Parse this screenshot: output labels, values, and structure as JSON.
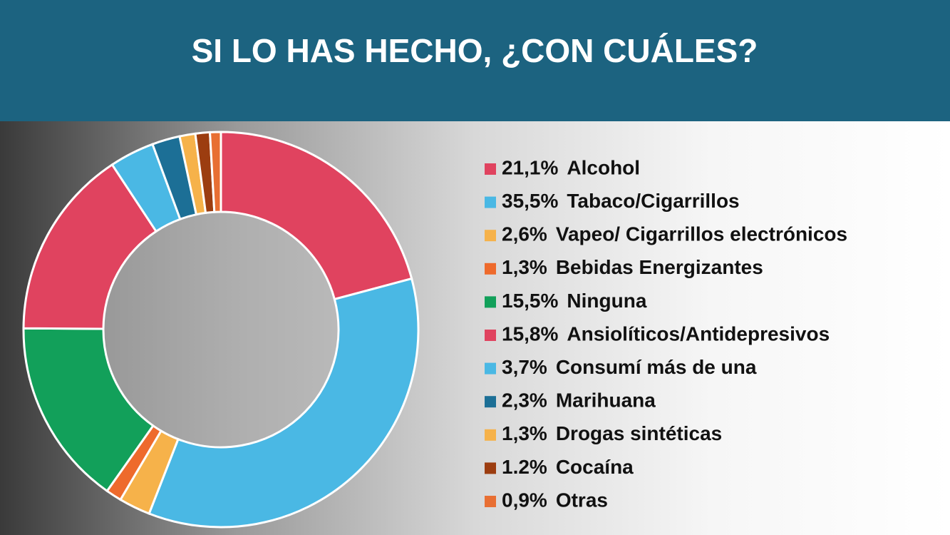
{
  "chart_data": {
    "type": "donut",
    "title": "SI LO HAS HECHO, ¿CON CUÁLES?",
    "categories": [
      "Alcohol",
      "Tabaco/Cigarrillos",
      "Vapeo/ Cigarrillos electrónicos",
      "Bebidas Energizantes",
      "Ninguna",
      "Ansiolíticos/Antidepresivos",
      "Consumí más de una",
      "Marihuana",
      "Drogas sintéticas",
      "Cocaína",
      "Otras"
    ],
    "values": [
      21.1,
      35.5,
      2.6,
      1.3,
      15.5,
      15.8,
      3.7,
      2.3,
      1.3,
      1.2,
      0.9
    ],
    "value_labels": [
      "21,1%",
      "35,5%",
      "2,6%",
      "1,3%",
      "15,5%",
      "15,8%",
      "3,7%",
      "2,3%",
      "1,3%",
      "1.2%",
      "0,9%"
    ],
    "colors": [
      "#e0435f",
      "#4ab8e4",
      "#f6b24a",
      "#ee6a2c",
      "#12a05a",
      "#e0435f",
      "#4ab8e4",
      "#1c6f96",
      "#f6b24a",
      "#9c3d10",
      "#e86f33"
    ],
    "legend": "right"
  }
}
